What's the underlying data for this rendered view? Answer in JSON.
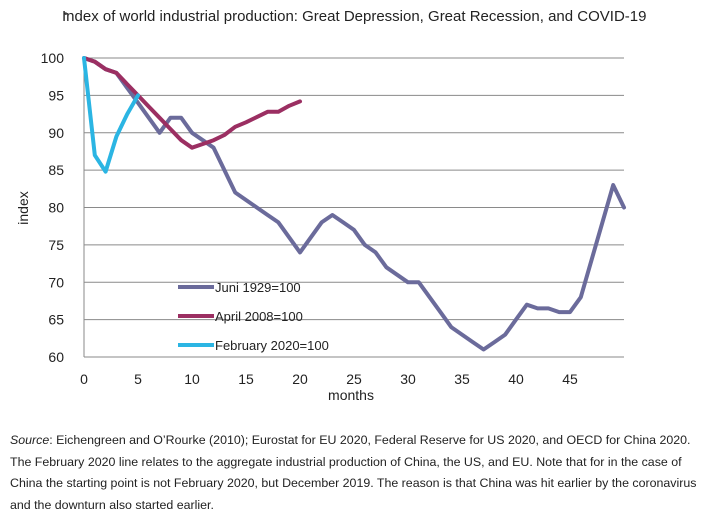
{
  "chart_data": {
    "type": "line",
    "title": "Index of world industrial production: Great Depression, Great Recession, and COVID-19",
    "xlabel": "months",
    "ylabel": "index",
    "xlim": [
      0,
      50
    ],
    "ylim": [
      60,
      100
    ],
    "x_ticks": [
      0,
      5,
      10,
      15,
      20,
      25,
      30,
      35,
      40,
      45
    ],
    "y_ticks": [
      60,
      65,
      70,
      75,
      80,
      85,
      90,
      95,
      100
    ],
    "grid": "horizontal",
    "legend_position": "center-left",
    "series": [
      {
        "name": "Juni 1929=100",
        "color": "#6b6b9b",
        "x": [
          0,
          1,
          2,
          3,
          4,
          5,
          6,
          7,
          8,
          9,
          10,
          11,
          12,
          13,
          14,
          15,
          16,
          17,
          18,
          19,
          20,
          21,
          22,
          23,
          24,
          25,
          26,
          27,
          28,
          29,
          30,
          31,
          32,
          33,
          34,
          35,
          36,
          37,
          38,
          39,
          40,
          41,
          42,
          43,
          44,
          45,
          46,
          47,
          48,
          49,
          50
        ],
        "values": [
          100,
          99.5,
          98.5,
          98,
          96,
          94,
          92,
          90,
          92,
          92,
          90,
          89,
          88,
          85,
          82,
          81,
          80,
          79,
          78,
          76,
          74,
          76,
          78,
          79,
          78,
          77,
          75,
          74,
          72,
          71,
          70,
          70,
          68,
          66,
          64,
          63,
          62,
          61,
          62,
          63,
          65,
          67,
          66.5,
          66.5,
          66,
          66,
          68,
          73,
          78,
          83,
          80
        ]
      },
      {
        "name": "April 2008=100",
        "color": "#9b2f62",
        "x": [
          0,
          1,
          2,
          3,
          4,
          5,
          6,
          7,
          8,
          9,
          10,
          11,
          12,
          13,
          14,
          15,
          16,
          17,
          18,
          19,
          20
        ],
        "values": [
          100,
          99.5,
          98.5,
          98,
          96.5,
          95,
          93.5,
          92,
          90.5,
          89,
          88,
          88.5,
          89,
          89.7,
          90.8,
          91.4,
          92.1,
          92.8,
          92.8,
          93.6,
          94.2
        ]
      },
      {
        "name": "February 2020=100",
        "color": "#2bb5e3",
        "x": [
          0,
          1,
          2,
          3,
          4,
          5
        ],
        "values": [
          100,
          87,
          84.8,
          89.5,
          92.5,
          95
        ]
      }
    ]
  },
  "caption": {
    "source_label": "Source",
    "text": ": Eichengreen and O’Rourke (2010); Eurostat for EU 2020, Federal Reserve for US 2020, and OECD for China 2020. The February 2020 line relates to the aggregate industrial production of China, the US, and EU. Note that for in the case of China the starting point is not February 2020, but December 2019. The reason is that China was hit earlier by the coronavirus and the downturn also started earlier."
  }
}
